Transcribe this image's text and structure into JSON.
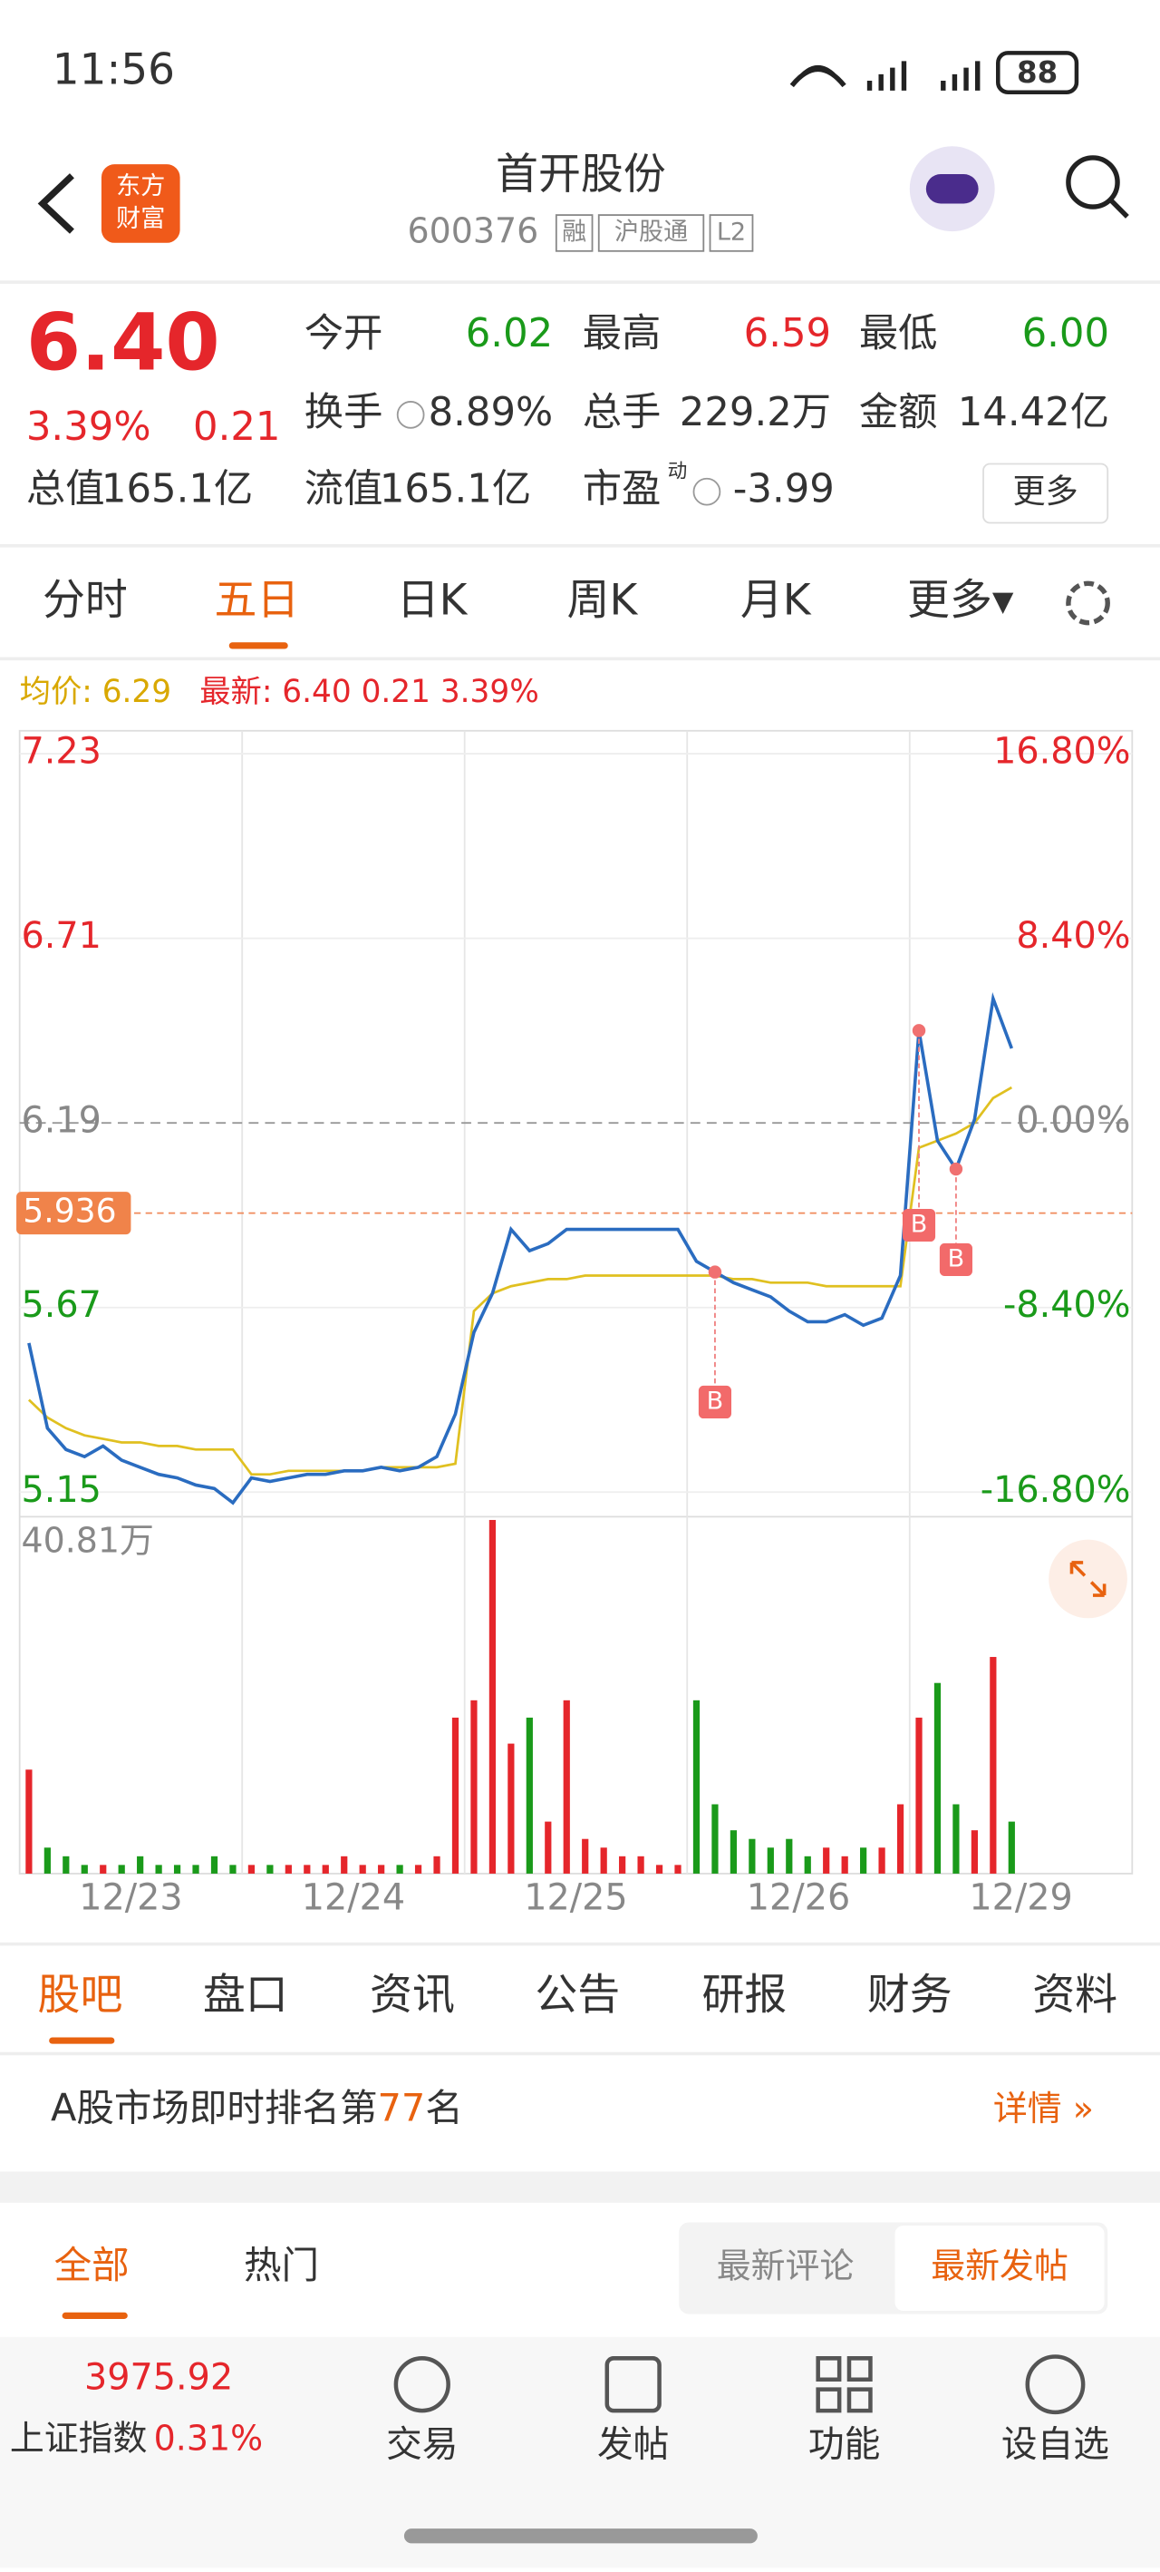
{
  "status": {
    "time": "11:56",
    "battery": "88"
  },
  "header": {
    "logo": [
      "东方",
      "财富"
    ],
    "title": "首开股份",
    "code": "600376",
    "badges": [
      "融",
      "沪股通",
      "L2"
    ]
  },
  "quote": {
    "price": "6.40",
    "change_pct": "3.39%",
    "change": "0.21",
    "fields": [
      {
        "label": "今开",
        "value": "6.02"
      },
      {
        "label": "最高",
        "value": "6.59"
      },
      {
        "label": "最低",
        "value": "6.00"
      },
      {
        "label": "换手",
        "value": "8.89%"
      },
      {
        "label": "总手",
        "value": "229.2万"
      },
      {
        "label": "金额",
        "value": "14.42亿"
      },
      {
        "label": "总值",
        "value": "165.1亿"
      },
      {
        "label": "流值",
        "value": "165.1亿"
      },
      {
        "label": "市盈",
        "sup": "动",
        "value": "-3.99"
      }
    ],
    "more": "更多"
  },
  "tabs": [
    "分时",
    "五日",
    "日K",
    "周K",
    "月K",
    "更多▾"
  ],
  "chart_data": {
    "type": "line",
    "legend": [
      "均价: 6.29",
      "最新: 6.40 0.21 3.39%"
    ],
    "x_labels": [
      "12/23",
      "12/24",
      "12/25",
      "12/26",
      "12/29"
    ],
    "ylim": [
      5.15,
      7.23
    ],
    "yticks": [
      7.23,
      6.71,
      6.19,
      5.67,
      5.15
    ],
    "y2lim": [
      -16.8,
      16.8
    ],
    "y2ticks": [
      {
        "value": 16.8,
        "label": "16.80%"
      },
      {
        "value": 8.4,
        "label": "8.40%"
      },
      {
        "value": 0,
        "label": "0.00%"
      },
      {
        "value": -8.4,
        "label": "-8.40%"
      },
      {
        "value": -16.8,
        "label": "-16.80%"
      }
    ],
    "reference": 5.936,
    "series": [
      {
        "name": "最新",
        "color": "#2a6cc0",
        "values": [
          5.57,
          5.33,
          5.27,
          5.25,
          5.28,
          5.24,
          5.22,
          5.2,
          5.19,
          5.17,
          5.16,
          5.12,
          5.19,
          5.18,
          5.19,
          5.2,
          5.2,
          5.21,
          5.21,
          5.22,
          5.21,
          5.22,
          5.25,
          5.37,
          5.6,
          5.71,
          5.89,
          5.83,
          5.85,
          5.89,
          5.89,
          5.89,
          5.89,
          5.89,
          5.89,
          5.89,
          5.8,
          5.77,
          5.74,
          5.72,
          5.7,
          5.66,
          5.63,
          5.63,
          5.65,
          5.62,
          5.64,
          5.76,
          6.45,
          6.14,
          6.06,
          6.2,
          6.54,
          6.4
        ]
      },
      {
        "name": "均价",
        "color": "#e0c020",
        "values": [
          5.41,
          5.36,
          5.33,
          5.31,
          5.3,
          5.29,
          5.29,
          5.28,
          5.28,
          5.27,
          5.27,
          5.27,
          5.2,
          5.2,
          5.21,
          5.21,
          5.21,
          5.21,
          5.21,
          5.22,
          5.22,
          5.22,
          5.22,
          5.23,
          5.66,
          5.71,
          5.73,
          5.74,
          5.75,
          5.75,
          5.76,
          5.76,
          5.76,
          5.76,
          5.76,
          5.76,
          5.76,
          5.76,
          5.75,
          5.75,
          5.74,
          5.74,
          5.74,
          5.73,
          5.73,
          5.73,
          5.73,
          5.73,
          6.12,
          6.14,
          6.16,
          6.19,
          6.26,
          6.29
        ]
      }
    ],
    "buy_markers": [
      "B",
      "B",
      "B"
    ],
    "volume": {
      "ylim": [
        0,
        40.81
      ],
      "yticks": [
        {
          "value": 40.81,
          "label": "40.81万"
        }
      ],
      "up_color": "#e5262b",
      "down_color": "#1a9a1a",
      "values": [
        12,
        3,
        2,
        1,
        1,
        1,
        2,
        1,
        1,
        1,
        2,
        1,
        1,
        1,
        1,
        1,
        1,
        2,
        1,
        1,
        1,
        1,
        2,
        18,
        20,
        40.81,
        15,
        18,
        6,
        20,
        4,
        3,
        2,
        2,
        1,
        1,
        20,
        8,
        5,
        4,
        3,
        4,
        2,
        3,
        2,
        3,
        3,
        8,
        18,
        22,
        8,
        5,
        25,
        6
      ]
    }
  },
  "subtabs": [
    "股吧",
    "盘口",
    "资讯",
    "公告",
    "研报",
    "财务",
    "资料"
  ],
  "rank": {
    "prefix": "A股市场即时排名第",
    "value": "77",
    "suffix": "名",
    "detail": "详情 »"
  },
  "filters": [
    "全部",
    "热门",
    "最新评论",
    "最新发帖"
  ],
  "bottom": {
    "index_value": "3975.92",
    "index_name": "上证指数",
    "index_change": "0.31%",
    "actions": [
      "交易",
      "发帖",
      "功能",
      "设自选"
    ]
  }
}
